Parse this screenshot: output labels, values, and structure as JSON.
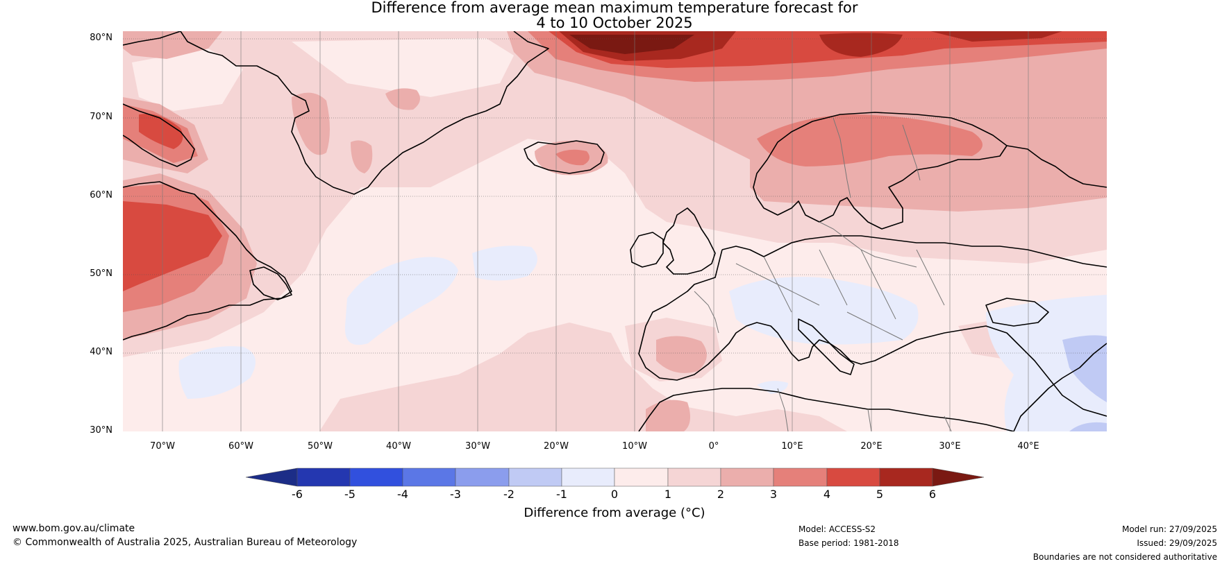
{
  "title": {
    "line1": "Difference from average mean maximum temperature forecast for",
    "line2": "4 to 10 October 2025"
  },
  "map": {
    "lat_labels": [
      "80°N",
      "70°N",
      "60°N",
      "50°N",
      "40°N",
      "30°N"
    ],
    "lon_labels": [
      "70°W",
      "60°W",
      "50°W",
      "40°W",
      "30°W",
      "20°W",
      "10°W",
      "0°",
      "10°E",
      "20°E",
      "30°E",
      "40°E"
    ],
    "colors": {
      "neg6": "#1c2d87",
      "neg5": "#2437b0",
      "neg4": "#3150de",
      "neg3": "#5b77e6",
      "neg2": "#8b9ded",
      "neg1": "#c0caf4",
      "zero": "#e8ecfc",
      "pos0": "#fdeceb",
      "pos1": "#f5d5d5",
      "pos2": "#ebaeac",
      "pos3": "#e5807a",
      "pos4": "#d84a40",
      "pos5": "#a8281f",
      "pos6": "#7a1912",
      "land": "#000000",
      "border": "#777777"
    }
  },
  "colorbar": {
    "ticks": [
      "-6",
      "-5",
      "-4",
      "-3",
      "-2",
      "-1",
      "0",
      "1",
      "2",
      "3",
      "4",
      "5",
      "6"
    ],
    "label": "Difference from average (°C)"
  },
  "footer": {
    "website": "www.bom.gov.au/climate",
    "copyright": "© Commonwealth of Australia 2025, Australian Bureau of Meteorology",
    "model": "Model: ACCESS-S2",
    "base_period": "Base period: 1981-2018",
    "model_run": "Model run: 27/09/2025",
    "issued": "Issued: 29/09/2025",
    "disclaimer": "Boundaries are not considered authoritative"
  }
}
